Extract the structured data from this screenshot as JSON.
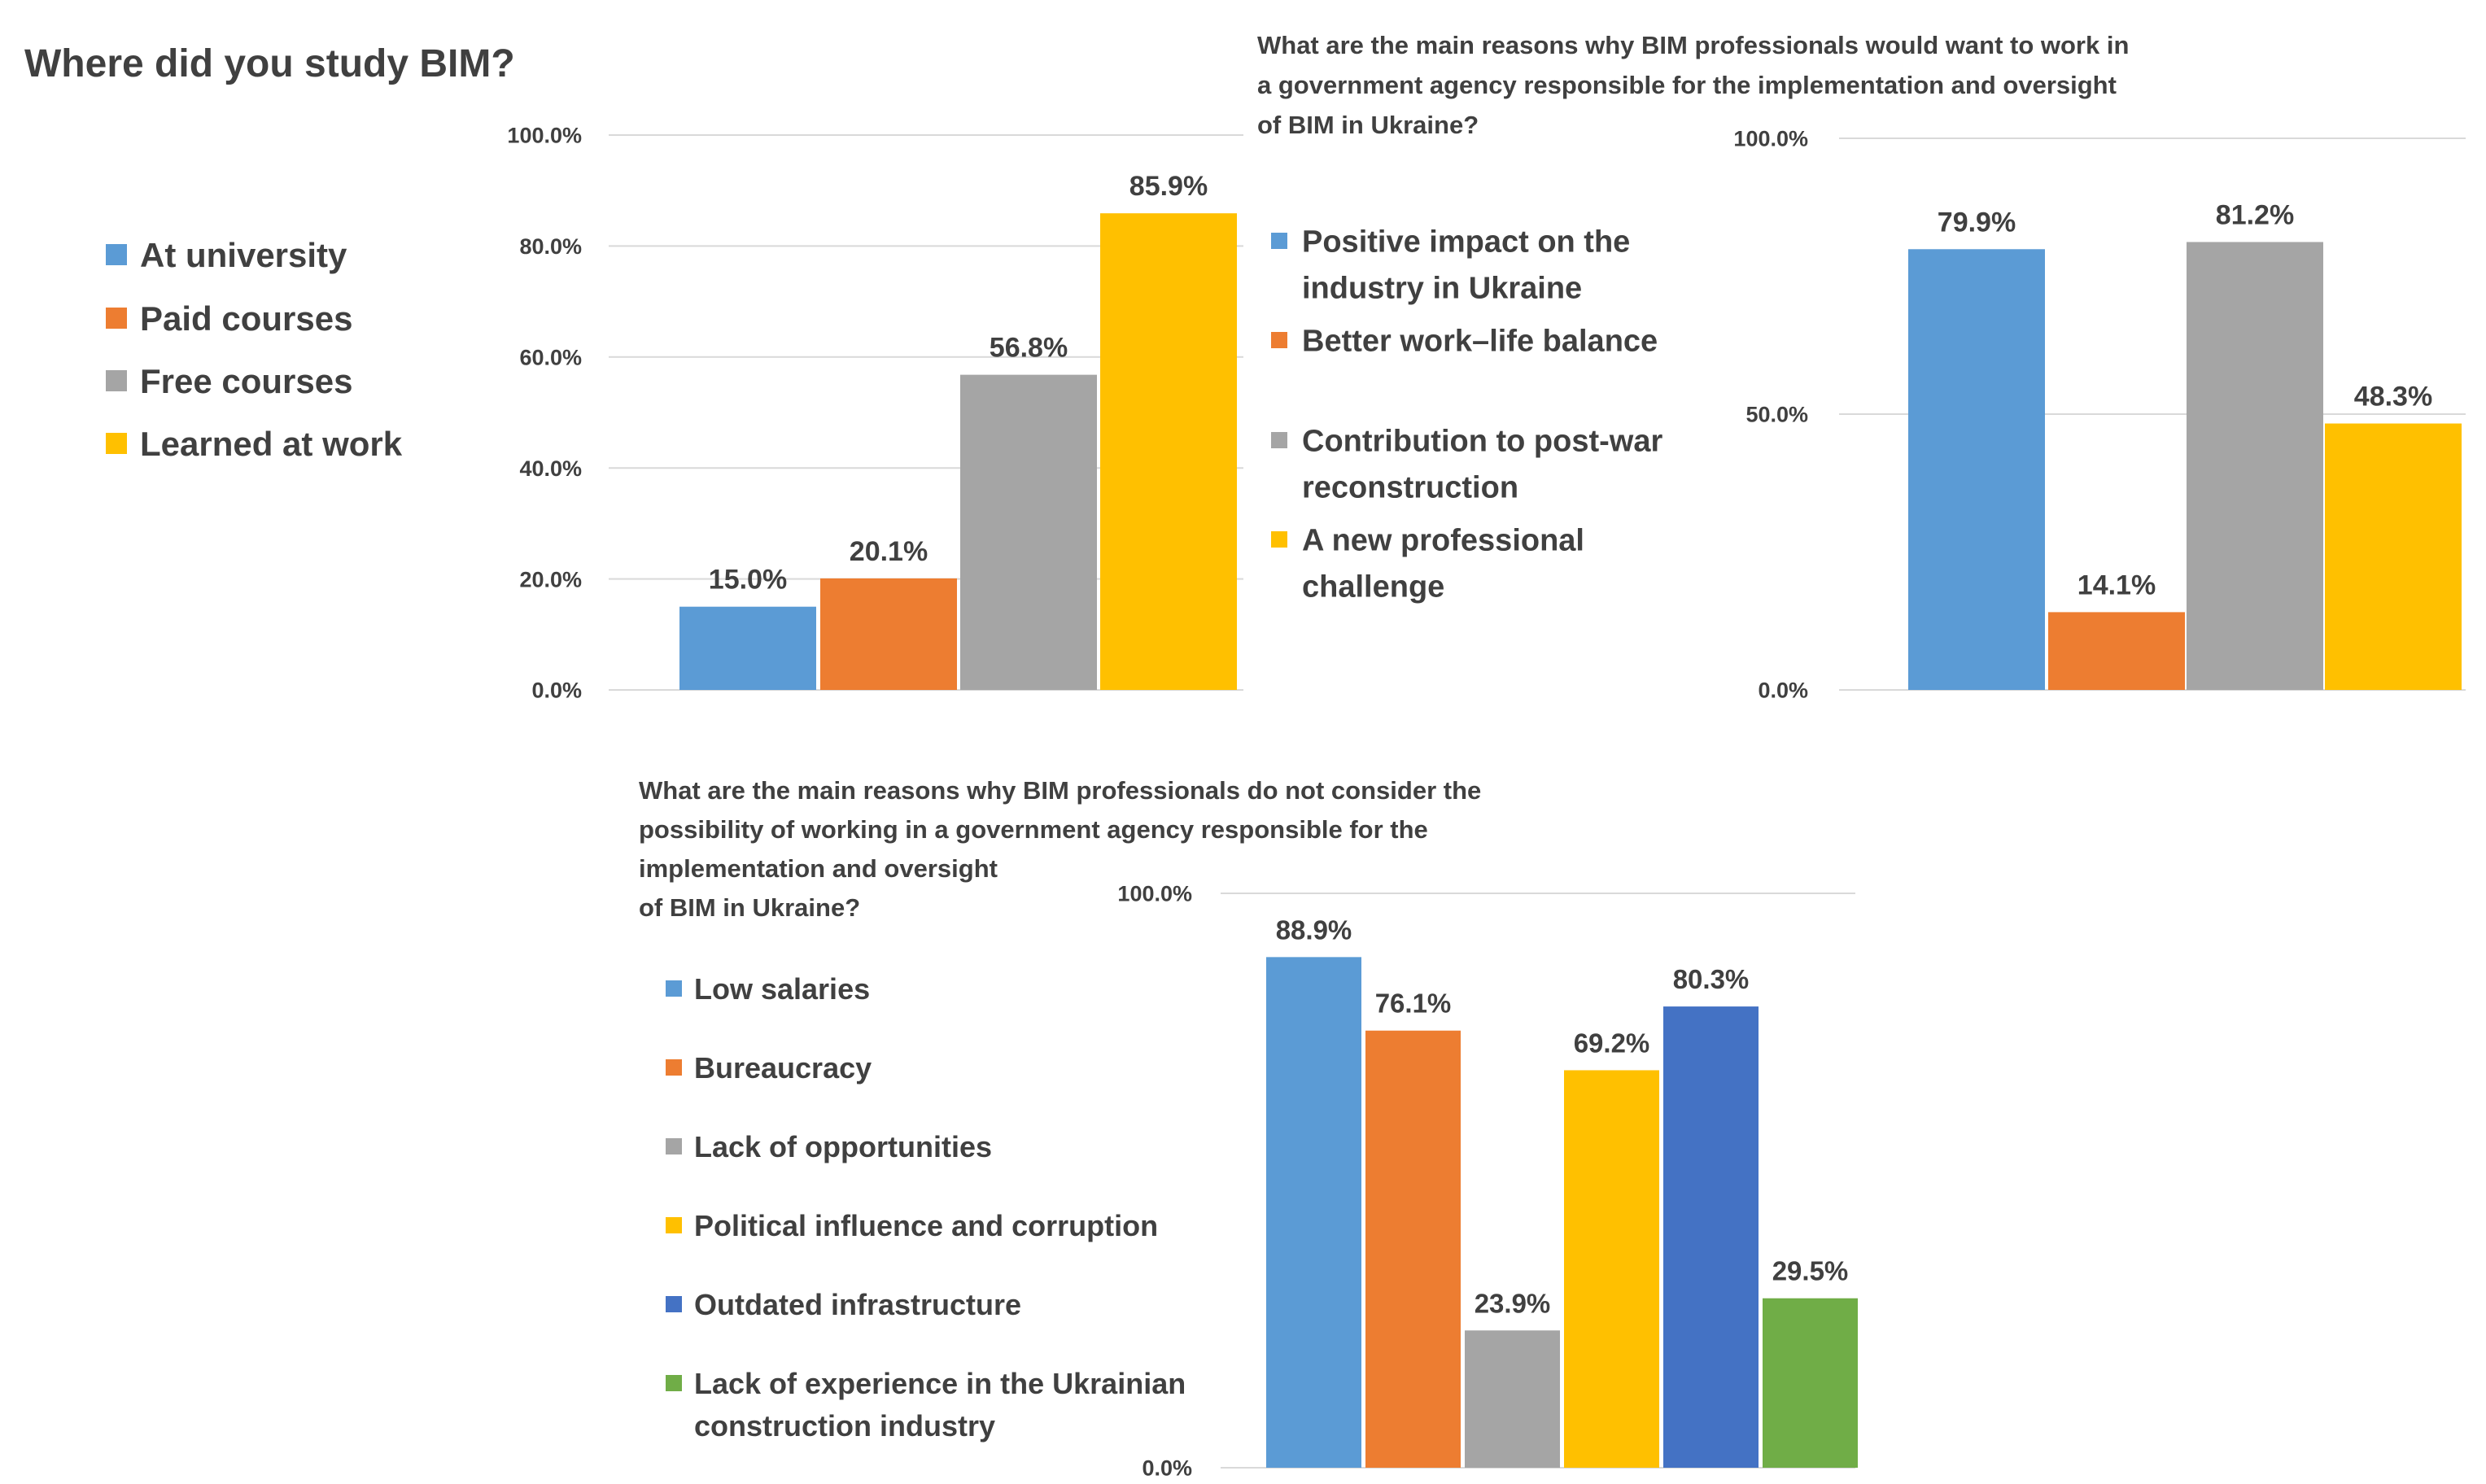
{
  "chart_data": [
    {
      "type": "bar",
      "title": "Where did you study BIM?",
      "categories": [
        "At university",
        "Paid courses",
        "Free courses",
        "Learned at work"
      ],
      "values": [
        15.0,
        20.1,
        56.8,
        85.9
      ],
      "value_labels": [
        "15.0%",
        "20.1%",
        "56.8%",
        "85.9%"
      ],
      "colors": [
        "#5b9bd5",
        "#ed7d31",
        "#a5a5a5",
        "#ffc000"
      ],
      "yticks": [
        "0.0%",
        "20.0%",
        "40.0%",
        "60.0%",
        "80.0%",
        "100.0%"
      ],
      "ylim": [
        0,
        100
      ],
      "grid": true,
      "legend": [
        {
          "lines": [
            "At university"
          ]
        },
        {
          "lines": [
            "Paid courses"
          ]
        },
        {
          "lines": [
            "Free courses"
          ]
        },
        {
          "lines": [
            "Learned at work"
          ]
        }
      ],
      "legend_position": "left"
    },
    {
      "type": "bar",
      "title_lines": [
        "What are the main reasons why BIM professionals would want to work in",
        "a government agency responsible for the implementation and oversight",
        "of BIM in Ukraine?"
      ],
      "categories": [
        "Positive impact on the industry in Ukraine",
        "Better work–life balance",
        "Contribution to post-war reconstruction",
        "A new professional challenge"
      ],
      "values": [
        79.9,
        14.1,
        81.2,
        48.3
      ],
      "value_labels": [
        "79.9%",
        "14.1%",
        "81.2%",
        "48.3%"
      ],
      "colors": [
        "#5b9bd5",
        "#ed7d31",
        "#a5a5a5",
        "#ffc000"
      ],
      "yticks": [
        "0.0%",
        "50.0%",
        "100.0%"
      ],
      "ylim": [
        0,
        100
      ],
      "grid": true,
      "legend": [
        {
          "lines": [
            "Positive impact on the",
            "industry in Ukraine"
          ]
        },
        {
          "lines": [
            "Better work–life balance"
          ]
        },
        {
          "lines": [
            "Contribution to post-war",
            "reconstruction"
          ]
        },
        {
          "lines": [
            "A new professional",
            "challenge"
          ]
        }
      ],
      "legend_position": "left"
    },
    {
      "type": "bar",
      "title_lines": [
        "What are the main reasons why BIM professionals do not consider the",
        "possibility of working in a government agency responsible for the",
        "implementation and oversight",
        "of BIM in Ukraine?"
      ],
      "categories": [
        "Low salaries",
        "Bureaucracy",
        "Lack of opportunities",
        "Political influence and corruption",
        "Outdated infrastructure",
        "Lack of experience in the Ukrainian construction industry"
      ],
      "values": [
        88.9,
        76.1,
        23.9,
        69.2,
        80.3,
        29.5
      ],
      "value_labels": [
        "88.9%",
        "76.1%",
        "23.9%",
        "69.2%",
        "80.3%",
        "29.5%"
      ],
      "colors": [
        "#5b9bd5",
        "#ed7d31",
        "#a5a5a5",
        "#ffc000",
        "#4472c4",
        "#70ad47"
      ],
      "yticks": [
        "0.0%",
        "100.0%"
      ],
      "ylim": [
        0,
        100
      ],
      "grid": true,
      "legend": [
        {
          "lines": [
            "Low salaries"
          ]
        },
        {
          "lines": [
            "Bureaucracy"
          ]
        },
        {
          "lines": [
            "Lack of opportunities"
          ]
        },
        {
          "lines": [
            "Political influence and corruption"
          ]
        },
        {
          "lines": [
            "Outdated infrastructure"
          ]
        },
        {
          "lines": [
            "Lack of experience in the Ukrainian",
            "construction industry"
          ]
        }
      ],
      "legend_position": "left"
    }
  ]
}
